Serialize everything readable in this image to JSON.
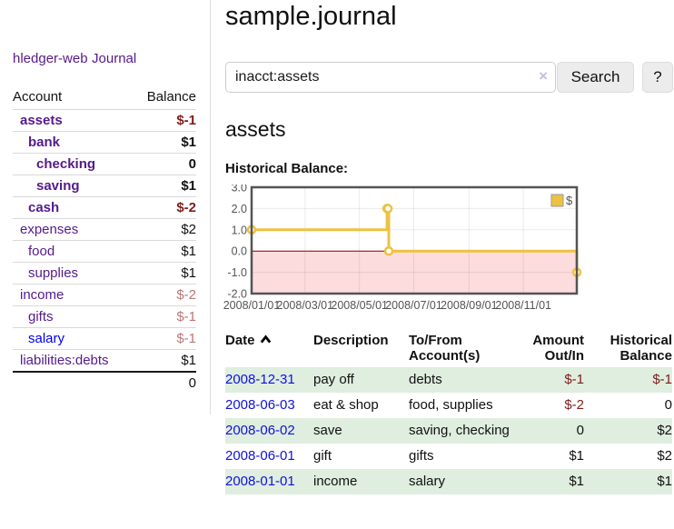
{
  "sidebar": {
    "brand": "hledger-web",
    "nav": {
      "journal": "Journal"
    },
    "accounts": {
      "headers": {
        "account": "Account",
        "balance": "Balance"
      },
      "rows": [
        {
          "name": "assets",
          "balance": "$-1"
        },
        {
          "name": "bank",
          "balance": "$1"
        },
        {
          "name": "checking",
          "balance": "0"
        },
        {
          "name": "saving",
          "balance": "$1"
        },
        {
          "name": "cash",
          "balance": "$-2"
        },
        {
          "name": "expenses",
          "balance": "$2"
        },
        {
          "name": "food",
          "balance": "$1"
        },
        {
          "name": "supplies",
          "balance": "$1"
        },
        {
          "name": "income",
          "balance": "$-2"
        },
        {
          "name": "gifts",
          "balance": "$-1"
        },
        {
          "name": "salary",
          "balance": "$-1"
        },
        {
          "name": "liabilities:debts",
          "balance": "$1"
        }
      ],
      "total": "0"
    }
  },
  "main": {
    "title": "sample.journal",
    "search": {
      "query": "inacct:assets",
      "clear_icon": "×",
      "search_label": "Search",
      "help_label": "?"
    },
    "account_heading": "assets",
    "chart_label": "Historical Balance:"
  },
  "chart_data": {
    "type": "line",
    "title": "Historical Balance",
    "legend": "$",
    "legend_position": "top-right",
    "grid": true,
    "ylim": [
      -2,
      3
    ],
    "y_ticks": [
      3,
      2,
      1,
      0,
      -1,
      -2
    ],
    "x_range": [
      "2008-01-01",
      "2008-12-31"
    ],
    "x_ticks": [
      "2008/01/01",
      "2008/03/01",
      "2008/05/01",
      "2008/07/01",
      "2008/09/01",
      "2008/11/01"
    ],
    "zero_line_color": "#8b0000",
    "negative_region_color": "#fcdcdc",
    "series": [
      {
        "name": "$",
        "color": "#edc240",
        "step": true,
        "points": [
          {
            "date": "2008-01-01",
            "value": 1
          },
          {
            "date": "2008-06-01",
            "value": 2
          },
          {
            "date": "2008-06-02",
            "value": 2
          },
          {
            "date": "2008-06-03",
            "value": 0
          },
          {
            "date": "2008-12-31",
            "value": -1
          }
        ]
      }
    ]
  },
  "transactions": {
    "headers": {
      "date": "Date",
      "description": "Description",
      "accounts": "To/From Account(s)",
      "amount": "Amount Out/In",
      "balance": "Historical Balance"
    },
    "rows": [
      {
        "date": "2008-12-31",
        "description": "pay off",
        "accounts": "debts",
        "amount": "$-1",
        "balance": "$-1"
      },
      {
        "date": "2008-06-03",
        "description": "eat & shop",
        "accounts": "food, supplies",
        "amount": "$-2",
        "balance": "0"
      },
      {
        "date": "2008-06-02",
        "description": "save",
        "accounts": "saving, checking",
        "amount": "0",
        "balance": "$2"
      },
      {
        "date": "2008-06-01",
        "description": "gift",
        "accounts": "gifts",
        "amount": "$1",
        "balance": "$2"
      },
      {
        "date": "2008-01-01",
        "description": "income",
        "accounts": "salary",
        "amount": "$1",
        "balance": "$1"
      }
    ]
  },
  "colors": {
    "purple_link": "#551a8b",
    "blue_link": "#0000ee",
    "negative_strong": "#801c1c",
    "negative_soft": "#bb7777",
    "row_stripe_green": "#dfeedf",
    "chart_line": "#edc240",
    "chart_border": "#545454"
  }
}
